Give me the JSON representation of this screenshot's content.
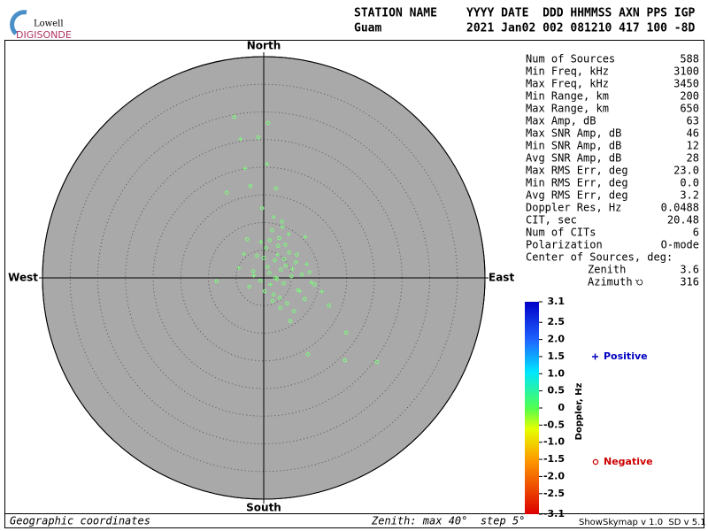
{
  "logo": {
    "top": "Lowell",
    "bottom": "DIGISONDE"
  },
  "header": {
    "columns": [
      "STATION NAME",
      "YYYY DATE  DDD HHMMSS AXN PPS IGP"
    ],
    "values": [
      "Guam",
      "2021 Jan02 002 081210 417 100 -8D"
    ]
  },
  "stats": {
    "rows": [
      [
        "Num of Sources",
        "588"
      ],
      [
        "Min Freq, kHz",
        "3100"
      ],
      [
        "Max Freq, kHz",
        "3450"
      ],
      [
        "Min Range, km",
        "200"
      ],
      [
        "Max Range, km",
        "650"
      ],
      [
        "Max Amp, dB",
        "63"
      ],
      [
        "Max SNR Amp, dB",
        "46"
      ],
      [
        "Min SNR Amp, dB",
        "12"
      ],
      [
        "Avg SNR Amp, dB",
        "28"
      ],
      [
        "Max RMS Err, deg",
        "23.0"
      ],
      [
        "Min RMS Err, deg",
        "0.0"
      ],
      [
        "Avg RMS Err, deg",
        "3.2"
      ],
      [
        "Doppler Res, Hz",
        "0.0488"
      ],
      [
        "CIT, sec",
        "20.48"
      ],
      [
        "Num of CITs",
        "6"
      ],
      [
        "Polarization",
        "O-mode"
      ]
    ],
    "center_title": "Center of Sources, deg:",
    "center_rows": [
      [
        "Zenith",
        "3.6"
      ],
      [
        "Azimuth",
        "316"
      ]
    ]
  },
  "chart_data": {
    "type": "skymap",
    "directions": {
      "north": "North",
      "south": "South",
      "east": "East",
      "west": "West"
    },
    "xlim": [
      -40,
      40
    ],
    "ylim": [
      -40,
      40
    ],
    "rings": [
      5,
      10,
      15,
      20,
      25,
      30,
      35,
      40
    ],
    "series": [
      {
        "name": "Positive",
        "marker": "+",
        "color": "#7cfc7c",
        "legend_color": "#0000c0",
        "x": [
          -4.2,
          0.6,
          -3.4,
          -4.5,
          1.8,
          7.5,
          4.5,
          10.5,
          6.5,
          -0.5,
          2.5,
          7.8,
          -3.6,
          1.2,
          5.2,
          3.4,
          -1.8,
          8.6
        ],
        "y": [
          25.1,
          20.6,
          19.8,
          1.8,
          11.0,
          7.4,
          7.9,
          -2.5,
          -2.4,
          6.5,
          4.2,
          2.5,
          4.3,
          -1.2,
          1.6,
          9.2,
          0.4,
          -0.8
        ]
      },
      {
        "name": "Negative",
        "marker": "o",
        "color": "#7cfc7c",
        "legend_color": "#cc0000",
        "x": [
          -5.3,
          0.8,
          -1.0,
          -6.7,
          -2.4,
          2.2,
          -0.3,
          14.9,
          20.5,
          14.7,
          8.0,
          -8.5,
          11.8,
          1.5,
          2.8,
          3.9,
          0.4,
          -1.2,
          2.0,
          4.6,
          5.8,
          3.1,
          1.0,
          -0.6,
          2.4,
          3.6,
          5.0,
          6.2,
          1.8,
          0.2,
          2.9,
          4.2,
          -1.9,
          3.3,
          6.9,
          7.4,
          1.1,
          2.6,
          4.0,
          0.7,
          -2.6,
          5.5,
          3.0,
          1.6,
          9.2,
          6.0,
          4.8,
          2.1,
          3.7,
          0.0,
          -3.0,
          8.3
        ],
        "y": [
          29.1,
          28.0,
          25.4,
          15.4,
          16.6,
          16.2,
          12.6,
          -9.9,
          -15.2,
          -14.9,
          -13.8,
          -0.6,
          -5.0,
          8.6,
          7.2,
          6.0,
          5.4,
          4.0,
          3.2,
          4.6,
          2.8,
          1.5,
          0.9,
          -0.5,
          -0.2,
          -1.0,
          0.3,
          -2.2,
          -3.0,
          -2.4,
          -3.6,
          -4.6,
          1.2,
          10.2,
          0.6,
          -3.8,
          6.8,
          5.8,
          2.2,
          2.0,
          -1.6,
          -6.0,
          -5.4,
          -4.2,
          -1.2,
          4.2,
          -7.8,
          0.0,
          3.4,
          3.6,
          7.0,
          1.0
        ]
      }
    ],
    "colorbar": {
      "label": "Doppler, Hz",
      "lim": [
        -3.1,
        3.1
      ],
      "ticks": [
        3.1,
        2.5,
        {
          "value": 2,
          "label": "2.0"
        },
        1.5,
        {
          "value": 1,
          "label": "1.0"
        },
        0.5,
        0,
        -0.5,
        {
          "value": -1,
          "label": "-1.0"
        },
        -1.5,
        {
          "value": -2,
          "label": "-2.0"
        },
        -2.5,
        -3.1
      ]
    },
    "footer": {
      "left": "Geographic coordinates",
      "middle": "Zenith: max 40°  step 5°",
      "right": "ShowSkymap v 1.0  SD v 5.1"
    }
  }
}
